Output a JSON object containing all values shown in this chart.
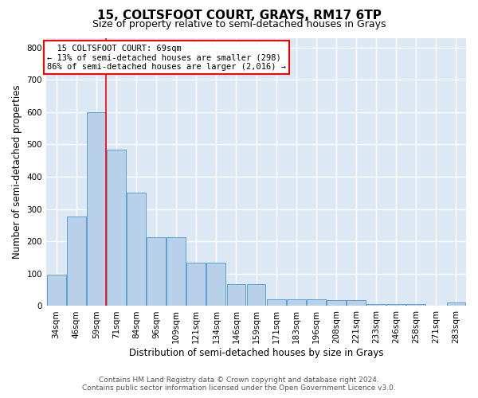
{
  "title": "15, COLTSFOOT COURT, GRAYS, RM17 6TP",
  "subtitle": "Size of property relative to semi-detached houses in Grays",
  "xlabel": "Distribution of semi-detached houses by size in Grays",
  "ylabel": "Number of semi-detached properties",
  "footer_line1": "Contains HM Land Registry data © Crown copyright and database right 2024.",
  "footer_line2": "Contains public sector information licensed under the Open Government Licence v3.0.",
  "categories": [
    "34sqm",
    "46sqm",
    "59sqm",
    "71sqm",
    "84sqm",
    "96sqm",
    "109sqm",
    "121sqm",
    "134sqm",
    "146sqm",
    "159sqm",
    "171sqm",
    "183sqm",
    "196sqm",
    "208sqm",
    "221sqm",
    "233sqm",
    "246sqm",
    "258sqm",
    "271sqm",
    "283sqm"
  ],
  "values": [
    97,
    278,
    600,
    483,
    352,
    213,
    213,
    133,
    133,
    68,
    68,
    20,
    20,
    20,
    18,
    18,
    5,
    5,
    5,
    0,
    10
  ],
  "bar_color": "#b8d0e8",
  "bar_edge_color": "#5a9fd4",
  "property_line_x": 2.5,
  "property_sqm": 69,
  "pct_smaller": 13,
  "count_smaller": 298,
  "pct_larger": 86,
  "count_larger": 2016,
  "annotation_label": "15 COLTSFOOT COURT: 69sqm",
  "ylim": [
    0,
    830
  ],
  "yticks": [
    0,
    100,
    200,
    300,
    400,
    500,
    600,
    700,
    800
  ],
  "background_color": "#dde8f5",
  "grid_color": "#ffffff",
  "title_fontsize": 11,
  "subtitle_fontsize": 9,
  "tick_label_fontsize": 7.5,
  "axis_label_fontsize": 8.5,
  "footer_fontsize": 6.5
}
